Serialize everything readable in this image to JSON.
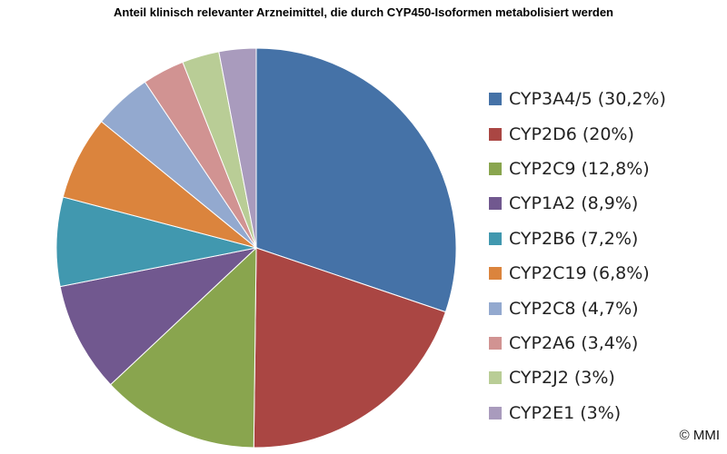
{
  "chart_data": {
    "type": "pie",
    "title": "Anteil klinisch relevanter Arzneimittel, die durch CYP450-Isoformen metabolisiert werden",
    "start_angle_deg": 0,
    "direction": "clockwise",
    "legend_position": "right",
    "slices": [
      {
        "name": "CYP3A4/5",
        "value": 30.2,
        "label": "CYP3A4/5 (30,2%)",
        "color": "#4572A7"
      },
      {
        "name": "CYP2D6",
        "value": 20,
        "label": "CYP2D6 (20%)",
        "color": "#AA4643"
      },
      {
        "name": "CYP2C9",
        "value": 12.8,
        "label": "CYP2C9 (12,8%)",
        "color": "#89A54E"
      },
      {
        "name": "CYP1A2",
        "value": 8.9,
        "label": "CYP1A2 (8,9%)",
        "color": "#71588F"
      },
      {
        "name": "CYP2B6",
        "value": 7.2,
        "label": "CYP2B6 (7,2%)",
        "color": "#4198AF"
      },
      {
        "name": "CYP2C19",
        "value": 6.8,
        "label": "CYP2C19 (6,8%)",
        "color": "#DB843D"
      },
      {
        "name": "CYP2C8",
        "value": 4.7,
        "label": "CYP2C8 (4,7%)",
        "color": "#93A9CF"
      },
      {
        "name": "CYP2A6",
        "value": 3.4,
        "label": "CYP2A6 (3,4%)",
        "color": "#D19392"
      },
      {
        "name": "CYP2J2",
        "value": 3,
        "label": "CYP2J2 (3%)",
        "color": "#B9CD96"
      },
      {
        "name": "CYP2E1",
        "value": 3,
        "label": "CYP2E1 (3%)",
        "color": "#A99BBD"
      }
    ]
  },
  "copyright": "© MMI"
}
